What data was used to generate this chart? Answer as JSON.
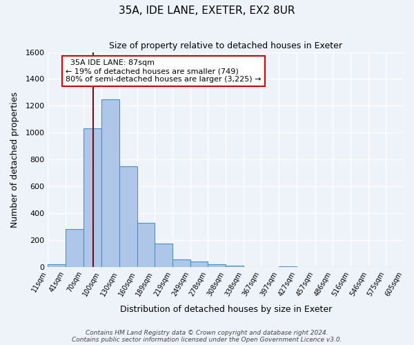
{
  "title": "35A, IDE LANE, EXETER, EX2 8UR",
  "subtitle": "Size of property relative to detached houses in Exeter",
  "xlabel": "Distribution of detached houses by size in Exeter",
  "ylabel": "Number of detached properties",
  "bar_values": [
    20,
    280,
    1030,
    1250,
    750,
    330,
    175,
    55,
    40,
    20,
    10,
    0,
    0,
    5,
    0,
    0,
    0,
    0,
    0,
    0
  ],
  "bar_labels": [
    "11sqm",
    "41sqm",
    "70sqm",
    "100sqm",
    "130sqm",
    "160sqm",
    "189sqm",
    "219sqm",
    "249sqm",
    "278sqm",
    "308sqm",
    "338sqm",
    "367sqm",
    "397sqm",
    "427sqm",
    "457sqm",
    "486sqm",
    "516sqm",
    "546sqm",
    "575sqm",
    "605sqm"
  ],
  "bar_color": "#aec6e8",
  "bar_edge_color": "#4a90c4",
  "vline_x": 87,
  "vline_color": "#8b0000",
  "annotation_title": "35A IDE LANE: 87sqm",
  "annotation_line1": "← 19% of detached houses are smaller (749)",
  "annotation_line2": "80% of semi-detached houses are larger (3,225) →",
  "annotation_box_color": "#ffffff",
  "annotation_box_edge": "#cc0000",
  "ylim": [
    0,
    1600
  ],
  "yticks": [
    0,
    200,
    400,
    600,
    800,
    1000,
    1200,
    1400,
    1600
  ],
  "bin_edges": [
    11,
    41,
    70,
    100,
    130,
    160,
    189,
    219,
    249,
    278,
    308,
    338,
    367,
    397,
    427,
    457,
    486,
    516,
    546,
    575,
    605
  ],
  "footer1": "Contains HM Land Registry data © Crown copyright and database right 2024.",
  "footer2": "Contains public sector information licensed under the Open Government Licence v3.0.",
  "bg_color": "#eef2f9",
  "plot_bg_color": "#eef2f9"
}
